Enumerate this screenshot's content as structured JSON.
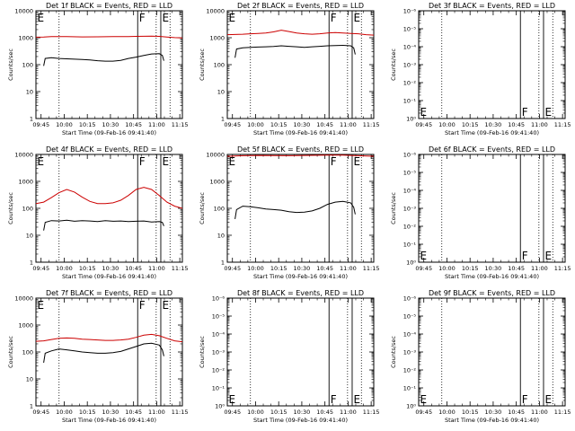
{
  "chart_data": [
    {
      "type": "line",
      "title": "Det 1f BLACK = Events, RED = LLD",
      "panel_type": "data",
      "ylabel": "Counts/sec",
      "xlabel": "Start Time (09-Feb-16 09:41:40)",
      "ylim": [
        1,
        10000
      ],
      "yscale": "log",
      "yticks": [
        "1",
        "10",
        "100",
        "1000",
        "10000"
      ],
      "xticks": [
        "09:45",
        "10:00",
        "10:15",
        "10:30",
        "10:45",
        "11:00",
        "11:15"
      ],
      "xrange_min": [
        0,
        95
      ],
      "vlines_dotted": [
        15,
        78,
        87
      ],
      "vlines_solid": [
        66,
        81
      ],
      "markers": [
        {
          "text": "E",
          "x": 0
        },
        {
          "text": "F",
          "x": 66
        },
        {
          "text": "E",
          "x": 81
        }
      ],
      "series": [
        {
          "color": "#cc0000",
          "x": [
            0,
            5,
            10,
            20,
            30,
            40,
            50,
            60,
            65,
            70,
            75,
            80,
            85,
            90,
            95
          ],
          "values": [
            1050,
            1060,
            1100,
            1100,
            1070,
            1080,
            1100,
            1100,
            1120,
            1130,
            1150,
            1120,
            1060,
            1010,
            980
          ]
        },
        {
          "color": "#000000",
          "x": [
            5,
            6,
            10,
            15,
            20,
            25,
            30,
            35,
            40,
            45,
            50,
            55,
            60,
            65,
            70,
            75,
            80,
            82,
            83
          ],
          "values": [
            90,
            170,
            180,
            170,
            165,
            160,
            155,
            150,
            140,
            135,
            135,
            145,
            170,
            190,
            220,
            250,
            255,
            220,
            140
          ]
        }
      ]
    },
    {
      "type": "line",
      "title": "Det 2f BLACK = Events, RED = LLD",
      "panel_type": "data",
      "ylabel": "Counts/sec",
      "xlabel": "Start Time (09-Feb-16 09:41:40)",
      "ylim": [
        1,
        10000
      ],
      "yscale": "log",
      "yticks": [
        "1",
        "10",
        "100",
        "1000",
        "10000"
      ],
      "xticks": [
        "09:45",
        "10:00",
        "10:15",
        "10:30",
        "10:45",
        "11:00",
        "11:15"
      ],
      "xrange_min": [
        0,
        95
      ],
      "vlines_dotted": [
        15,
        78,
        87
      ],
      "vlines_solid": [
        66,
        81
      ],
      "markers": [
        {
          "text": "E",
          "x": 0
        },
        {
          "text": "F",
          "x": 66
        },
        {
          "text": "E",
          "x": 81
        }
      ],
      "series": [
        {
          "color": "#cc0000",
          "x": [
            0,
            5,
            10,
            15,
            20,
            25,
            30,
            35,
            40,
            45,
            50,
            55,
            60,
            65,
            70,
            75,
            80,
            85,
            90,
            95
          ],
          "values": [
            1300,
            1320,
            1350,
            1400,
            1450,
            1500,
            1650,
            1900,
            1700,
            1500,
            1400,
            1350,
            1400,
            1500,
            1550,
            1500,
            1450,
            1400,
            1300,
            1250
          ]
        },
        {
          "color": "#000000",
          "x": [
            5,
            6,
            10,
            15,
            20,
            25,
            30,
            35,
            40,
            45,
            50,
            55,
            60,
            65,
            70,
            75,
            80,
            82,
            83
          ],
          "values": [
            180,
            380,
            420,
            440,
            450,
            460,
            470,
            500,
            480,
            460,
            440,
            460,
            480,
            500,
            510,
            520,
            500,
            420,
            240
          ]
        }
      ]
    },
    {
      "type": "line",
      "title": "Det 3f BLACK = Events, RED = LLD",
      "panel_type": "empty",
      "ylabel": "Counts/sec",
      "xlabel": "Start Time (09-Feb-16 09:41:40)",
      "ylim": [
        1,
        1e-06
      ],
      "yscale": "log",
      "yticks": [
        "10⁰",
        "10⁻¹",
        "10⁻²",
        "10⁻³",
        "10⁻⁴",
        "10⁻⁵",
        "10⁻⁶"
      ],
      "xticks": [
        "09:45",
        "10:00",
        "10:15",
        "10:30",
        "10:45",
        "11:00",
        "11:15"
      ],
      "xrange_min": [
        0,
        95
      ],
      "vlines_dotted": [
        15,
        78,
        87
      ],
      "vlines_solid": [
        66,
        81
      ],
      "markers": [
        {
          "text": "E",
          "x": 0
        },
        {
          "text": "F",
          "x": 66
        },
        {
          "text": "E",
          "x": 81
        }
      ],
      "series": []
    },
    {
      "type": "line",
      "title": "Det 4f BLACK = Events, RED = LLD",
      "panel_type": "data",
      "ylabel": "Counts/sec",
      "xlabel": "Start Time (09-Feb-16 09:41:40)",
      "ylim": [
        1,
        10000
      ],
      "yscale": "log",
      "yticks": [
        "1",
        "10",
        "100",
        "1000",
        "10000"
      ],
      "xticks": [
        "09:45",
        "10:00",
        "10:15",
        "10:30",
        "10:45",
        "11:00",
        "11:15"
      ],
      "xrange_min": [
        0,
        95
      ],
      "vlines_dotted": [
        15,
        78,
        87
      ],
      "vlines_solid": [
        66,
        81
      ],
      "markers": [
        {
          "text": "E",
          "x": 0
        },
        {
          "text": "F",
          "x": 66
        },
        {
          "text": "E",
          "x": 81
        }
      ],
      "series": [
        {
          "color": "#cc0000",
          "x": [
            0,
            5,
            10,
            15,
            20,
            25,
            30,
            35,
            40,
            45,
            50,
            55,
            60,
            65,
            70,
            75,
            80,
            85,
            90,
            95
          ],
          "values": [
            150,
            170,
            250,
            380,
            500,
            400,
            260,
            180,
            150,
            150,
            160,
            200,
            300,
            500,
            600,
            500,
            300,
            170,
            120,
            100
          ]
        },
        {
          "color": "#000000",
          "x": [
            5,
            6,
            10,
            15,
            20,
            25,
            30,
            35,
            40,
            45,
            50,
            55,
            60,
            65,
            70,
            75,
            80,
            82,
            83
          ],
          "values": [
            15,
            30,
            35,
            34,
            36,
            33,
            35,
            34,
            32,
            35,
            33,
            34,
            32,
            33,
            34,
            31,
            32,
            30,
            22
          ]
        }
      ]
    },
    {
      "type": "line",
      "title": "Det 5f BLACK = Events, RED = LLD",
      "panel_type": "data",
      "ylabel": "Counts/sec",
      "xlabel": "Start Time (09-Feb-16 09:41:40)",
      "ylim": [
        1,
        10000
      ],
      "yscale": "log",
      "yticks": [
        "1",
        "10",
        "100",
        "1000",
        "10000"
      ],
      "xticks": [
        "09:45",
        "10:00",
        "10:15",
        "10:30",
        "10:45",
        "11:00",
        "11:15"
      ],
      "xrange_min": [
        0,
        95
      ],
      "vlines_dotted": [
        15,
        78,
        87
      ],
      "vlines_solid": [
        66,
        81
      ],
      "markers": [
        {
          "text": "E",
          "x": 0
        },
        {
          "text": "F",
          "x": 66
        },
        {
          "text": "E",
          "x": 81
        }
      ],
      "series": [
        {
          "color": "#cc0000",
          "x": [
            0,
            5,
            10,
            20,
            30,
            40,
            50,
            60,
            65,
            70,
            75,
            80,
            85,
            90,
            95
          ],
          "values": [
            8500,
            8700,
            9000,
            9200,
            9100,
            9000,
            9200,
            9300,
            9400,
            9500,
            9400,
            9200,
            9000,
            8800,
            8600
          ]
        },
        {
          "color": "#000000",
          "x": [
            5,
            6,
            10,
            15,
            20,
            25,
            30,
            35,
            40,
            45,
            50,
            55,
            60,
            65,
            70,
            75,
            80,
            82,
            83
          ],
          "values": [
            40,
            90,
            120,
            115,
            105,
            95,
            90,
            85,
            75,
            70,
            72,
            80,
            100,
            140,
            170,
            180,
            160,
            110,
            60
          ]
        }
      ]
    },
    {
      "type": "line",
      "title": "Det 6f BLACK = Events, RED = LLD",
      "panel_type": "empty",
      "ylabel": "Counts/sec",
      "xlabel": "Start Time (09-Feb-16 09:41:40)",
      "ylim": [
        1,
        1e-06
      ],
      "yscale": "log",
      "yticks": [
        "10⁰",
        "10⁻¹",
        "10⁻²",
        "10⁻³",
        "10⁻⁴",
        "10⁻⁵",
        "10⁻⁶"
      ],
      "xticks": [
        "09:45",
        "10:00",
        "10:15",
        "10:30",
        "10:45",
        "11:00",
        "11:15"
      ],
      "xrange_min": [
        0,
        95
      ],
      "vlines_dotted": [
        15,
        78,
        87
      ],
      "vlines_solid": [
        66,
        81
      ],
      "markers": [
        {
          "text": "E",
          "x": 0
        },
        {
          "text": "F",
          "x": 66
        },
        {
          "text": "E",
          "x": 81
        }
      ],
      "series": []
    },
    {
      "type": "line",
      "title": "Det 7f BLACK = Events, RED = LLD",
      "panel_type": "data",
      "ylabel": "Counts/sec",
      "xlabel": "Start Time (09-Feb-16 09:41:40)",
      "ylim": [
        1,
        10000
      ],
      "yscale": "log",
      "yticks": [
        "1",
        "10",
        "100",
        "1000",
        "10000"
      ],
      "xticks": [
        "09:45",
        "10:00",
        "10:15",
        "10:30",
        "10:45",
        "11:00",
        "11:15"
      ],
      "xrange_min": [
        0,
        95
      ],
      "vlines_dotted": [
        15,
        78,
        87
      ],
      "vlines_solid": [
        66,
        81
      ],
      "markers": [
        {
          "text": "E",
          "x": 0
        },
        {
          "text": "F",
          "x": 66
        },
        {
          "text": "E",
          "x": 81
        }
      ],
      "series": [
        {
          "color": "#cc0000",
          "x": [
            0,
            5,
            10,
            15,
            20,
            25,
            30,
            35,
            40,
            45,
            50,
            55,
            60,
            65,
            70,
            75,
            80,
            85,
            90,
            95
          ],
          "values": [
            250,
            260,
            290,
            320,
            330,
            320,
            300,
            290,
            280,
            270,
            270,
            280,
            300,
            350,
            420,
            450,
            400,
            320,
            260,
            240
          ]
        },
        {
          "color": "#000000",
          "x": [
            5,
            6,
            10,
            15,
            20,
            25,
            30,
            35,
            40,
            45,
            50,
            55,
            60,
            65,
            70,
            75,
            80,
            82,
            83
          ],
          "values": [
            40,
            90,
            110,
            130,
            120,
            110,
            100,
            95,
            90,
            90,
            95,
            105,
            130,
            160,
            200,
            210,
            180,
            120,
            70
          ]
        }
      ]
    },
    {
      "type": "line",
      "title": "Det 8f BLACK = Events, RED = LLD",
      "panel_type": "empty",
      "ylabel": "Counts/sec",
      "xlabel": "Start Time (09-Feb-16 09:41:40)",
      "ylim": [
        1,
        1e-06
      ],
      "yscale": "log",
      "yticks": [
        "10⁰",
        "10⁻¹",
        "10⁻²",
        "10⁻³",
        "10⁻⁴",
        "10⁻⁵",
        "10⁻⁶"
      ],
      "xticks": [
        "09:45",
        "10:00",
        "10:15",
        "10:30",
        "10:45",
        "11:00",
        "11:15"
      ],
      "xrange_min": [
        0,
        95
      ],
      "vlines_dotted": [
        15,
        78,
        87
      ],
      "vlines_solid": [
        66,
        81
      ],
      "markers": [
        {
          "text": "E",
          "x": 0
        },
        {
          "text": "F",
          "x": 66
        },
        {
          "text": "E",
          "x": 81
        }
      ],
      "series": []
    },
    {
      "type": "line",
      "title": "Det 9f BLACK = Events, RED = LLD",
      "panel_type": "empty",
      "ylabel": "Counts/sec",
      "xlabel": "Start Time (09-Feb-16 09:41:40)",
      "ylim": [
        1,
        1e-06
      ],
      "yscale": "log",
      "yticks": [
        "10⁰",
        "10⁻¹",
        "10⁻²",
        "10⁻³",
        "10⁻⁴",
        "10⁻⁵",
        "10⁻⁶"
      ],
      "xticks": [
        "09:45",
        "10:00",
        "10:15",
        "10:30",
        "10:45",
        "11:00",
        "11:15"
      ],
      "xrange_min": [
        0,
        95
      ],
      "vlines_dotted": [
        15,
        78,
        87
      ],
      "vlines_solid": [
        66,
        81
      ],
      "markers": [
        {
          "text": "E",
          "x": 0
        },
        {
          "text": "F",
          "x": 66
        },
        {
          "text": "E",
          "x": 81
        }
      ],
      "series": []
    }
  ]
}
